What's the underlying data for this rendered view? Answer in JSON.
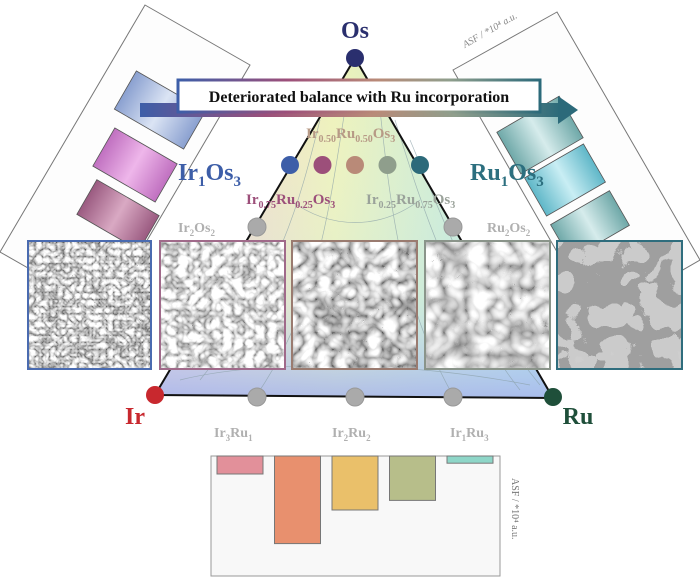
{
  "vertices": {
    "top": {
      "label": "Os",
      "color": "#2a2f6e"
    },
    "left": {
      "label": "Ir",
      "color": "#c8282e"
    },
    "right": {
      "label": "Ru",
      "color": "#1f4f3a"
    }
  },
  "banner": {
    "text": "Deteriorated balance with Ru incorporation"
  },
  "compositions": {
    "ir1os3": {
      "base1": "Ir",
      "sub1": "1",
      "base2": "Os",
      "sub2": "3",
      "color": "#3d5ea8"
    },
    "ru1os3": {
      "base1": "Ru",
      "sub1": "1",
      "base2": "Os",
      "sub2": "3",
      "color": "#2c6f7f"
    },
    "ir050": {
      "b1": "Ir",
      "s1": "0.50",
      "b2": "Ru",
      "s2": "0.50",
      "b3": "Os",
      "s3": "3",
      "color": "#b79a86"
    },
    "ir075": {
      "b1": "Ir",
      "s1": "0.75",
      "b2": "Ru",
      "s2": "0.25",
      "b3": "Os",
      "s3": "3",
      "color": "#9c4f7a"
    },
    "ir025": {
      "b1": "Ir",
      "s1": "0.25",
      "b2": "Ru",
      "s2": "0.75",
      "b3": "Os",
      "s3": "3",
      "color": "#9aa29a"
    },
    "ir2os2": {
      "b1": "Ir",
      "s1": "2",
      "b2": "Os",
      "s2": "2"
    },
    "ru2os2": {
      "b1": "Ru",
      "s1": "2",
      "b2": "Os",
      "s2": "2"
    },
    "ir3ru1": {
      "b1": "Ir",
      "s1": "3",
      "b2": "Ru",
      "s2": "1"
    },
    "ir2ru2": {
      "b1": "Ir",
      "s1": "2",
      "b2": "Ru",
      "s2": "2"
    },
    "ir1ru3": {
      "b1": "Ir",
      "s1": "1",
      "b2": "Ru",
      "s2": "3"
    }
  },
  "series_dots": [
    "#3d5ea8",
    "#9c4f7a",
    "#b98a78",
    "#8f9e8c",
    "#2c6a7a"
  ],
  "sem_frames": [
    "#4a6bb0",
    "#a06a8a",
    "#9a7b70",
    "#8a948a",
    "#2f6d7d"
  ],
  "right_panel_axis": "ASF / *10⁴ a.u.",
  "chart_data": {
    "type": "bar",
    "ylabel": "ASF / *10⁴ a.u.",
    "categories": [
      "",
      "",
      "",
      "",
      ""
    ],
    "values": [
      -0.15,
      -0.73,
      -0.45,
      -0.37,
      -0.06
    ],
    "value_units": "fraction of axis range (no tick labels shown)",
    "colors": [
      "#e2909a",
      "#e8906e",
      "#eac06a",
      "#b7be8a",
      "#8ed6c8"
    ],
    "ylim": [
      -1,
      0
    ],
    "grid": false
  }
}
